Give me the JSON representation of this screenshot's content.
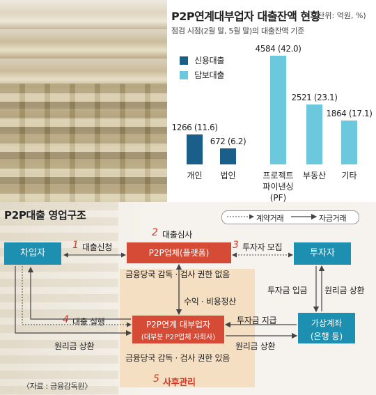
{
  "chart": {
    "title": "P2P연계대부업자 대출잔액 현황",
    "unit": "(단위: 억원, %)",
    "subtitle": "점검 시점(2월 말, 5월 말)의 대출잔액 기준",
    "legend": [
      "신용대출",
      "담보대출"
    ]
  },
  "chart_data": {
    "type": "bar",
    "categories": [
      "개인",
      "법인",
      "프로젝트 파이낸싱(PF)",
      "부동산",
      "기타"
    ],
    "series": [
      {
        "name": "신용대출",
        "values": [
          1266,
          672,
          null,
          null,
          null
        ]
      },
      {
        "name": "담보대출",
        "values": [
          null,
          null,
          4584,
          2521,
          1864
        ]
      }
    ],
    "data_labels": [
      "1266 (11.6)",
      "672 (6.2)",
      "4584 (42.0)",
      "2521 (23.1)",
      "1864 (17.1)"
    ],
    "colors": {
      "신용대출": "#1a5f8a",
      "담보대출": "#6cc8dc"
    }
  },
  "diagram": {
    "title": "P2P대출 영업구조",
    "legend": {
      "contract": "계약거래",
      "money": "자금거래"
    },
    "borrower": "차입자",
    "platform": "P2P업체(플랫폼)",
    "investor": "투자자",
    "lender_line1": "P2P연계 대부업자",
    "lender_line2": "(대부분 P2P업체 자회사)",
    "escrow_line1": "가상계좌",
    "escrow_line2": "(은행 등)",
    "steps": [
      {
        "num": "1",
        "label": "대출신청"
      },
      {
        "num": "2",
        "label": "대출심사"
      },
      {
        "num": "3",
        "label": "투자자 모집"
      },
      {
        "num": "4",
        "label": "대출 실행"
      },
      {
        "num": "5",
        "label": "사후관리"
      }
    ],
    "note_platform": "금융당국 감독 · 검사 권한 없음",
    "note_lender": "금융당국 감독 · 검사 권한 있음",
    "fee": "수익 · 비용정산",
    "invest_in": "투자금 입금",
    "principal_back": "원리금 상환",
    "invest_pay": "투자금 지급",
    "principal_repay_right": "원리금 상환",
    "principal_repay_left": "원리금 상환",
    "source": "〈자료 : 금융감독원〉"
  }
}
